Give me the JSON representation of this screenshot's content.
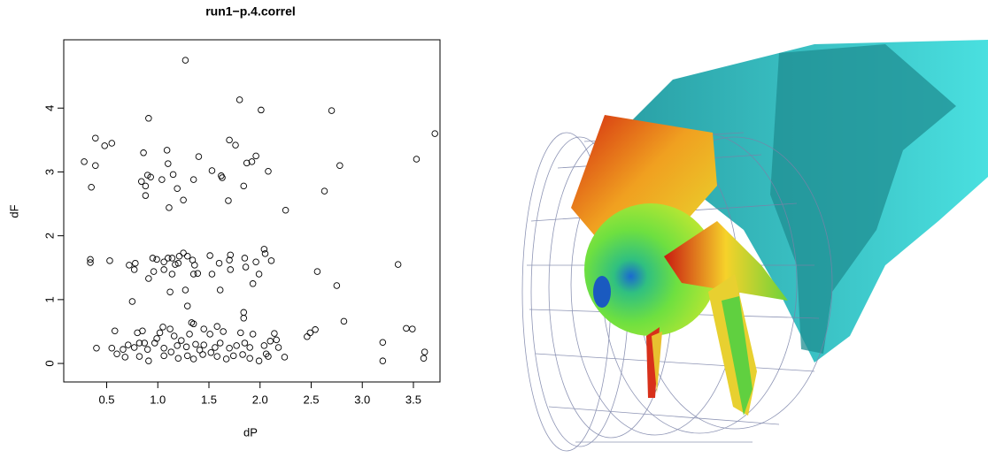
{
  "chart_data": {
    "type": "scatter",
    "title": "run1−p.4.correl",
    "x_label": "dP",
    "y_label": "dF",
    "xlim": [
      0.08,
      3.76
    ],
    "ylim": [
      -0.29,
      5.07
    ],
    "xticks": [
      0.5,
      {
        "value": 1,
        "label": "1.0"
      },
      1.5,
      {
        "value": 2,
        "label": "2.0"
      },
      2.5,
      {
        "value": 3,
        "label": "3.0"
      },
      3.5
    ],
    "yticks": [
      0,
      1,
      2,
      3,
      4
    ],
    "marker_color": "#000000",
    "x": [
      1.27,
      1.8,
      2.01,
      2.7,
      0.91,
      3.71,
      0.39,
      0.55,
      0.48,
      1.7,
      1.76,
      1.09,
      1.4,
      1.96,
      1.92,
      1.87,
      0.28,
      0.39,
      0.86,
      1.1,
      2.78,
      3.53,
      0.9,
      0.93,
      1.53,
      1.62,
      1.63,
      2.08,
      1.15,
      1.04,
      0.84,
      0.88,
      1.35,
      1.84,
      0.35,
      1.19,
      0.88,
      1.25,
      1.69,
      2.63,
      1.11,
      2.25,
      0.34,
      0.34,
      0.53,
      0.72,
      0.78,
      0.77,
      0.95,
      0.99,
      1.06,
      1.1,
      1.14,
      1.17,
      1.21,
      1.25,
      1.29,
      1.34,
      1.36,
      1.39,
      1.35,
      0.96,
      0.91,
      1.06,
      1.14,
      1.2,
      1.51,
      1.53,
      1.6,
      1.71,
      1.7,
      1.71,
      1.85,
      1.86,
      1.96,
      2.04,
      2.05,
      2.11,
      1.99,
      1.93,
      1.61,
      1.27,
      1.12,
      0.75,
      1.29,
      2.56,
      3.35,
      2.75,
      2.82,
      1.84,
      1.84,
      1.33,
      1.35,
      0.58,
      0.8,
      0.85,
      1.02,
      1.05,
      1.12,
      1.16,
      1.31,
      1.45,
      1.51,
      1.58,
      1.64,
      1.81,
      1.93,
      2.14,
      2.16,
      2.49,
      2.54,
      2.46,
      3.43,
      3.49,
      3.2,
      0.4,
      0.55,
      0.66,
      0.71,
      0.77,
      0.82,
      0.87,
      0.9,
      0.97,
      0.99,
      1.06,
      1.19,
      1.23,
      1.28,
      1.37,
      1.41,
      1.45,
      1.56,
      1.61,
      1.7,
      1.77,
      1.85,
      1.9,
      2.04,
      2.1,
      2.18,
      0.6,
      0.68,
      0.82,
      0.91,
      1.06,
      1.13,
      1.2,
      1.29,
      1.35,
      1.44,
      1.52,
      1.58,
      1.67,
      1.74,
      1.83,
      1.9,
      1.99,
      2.06,
      2.08,
      2.24,
      3.2,
      3.61,
      3.6
    ],
    "values": [
      4.75,
      4.13,
      3.97,
      3.96,
      3.84,
      3.6,
      3.53,
      3.45,
      3.41,
      3.5,
      3.42,
      3.34,
      3.24,
      3.25,
      3.16,
      3.14,
      3.16,
      3.1,
      3.3,
      3.13,
      3.1,
      3.2,
      2.95,
      2.92,
      3.02,
      2.94,
      2.91,
      3.01,
      2.96,
      2.88,
      2.85,
      2.78,
      2.88,
      2.78,
      2.76,
      2.74,
      2.63,
      2.56,
      2.55,
      2.7,
      2.44,
      2.4,
      1.63,
      1.58,
      1.61,
      1.54,
      1.57,
      1.47,
      1.65,
      1.63,
      1.59,
      1.65,
      1.65,
      1.55,
      1.68,
      1.73,
      1.68,
      1.62,
      1.54,
      1.41,
      1.4,
      1.44,
      1.33,
      1.47,
      1.4,
      1.57,
      1.69,
      1.4,
      1.57,
      1.7,
      1.62,
      1.47,
      1.65,
      1.51,
      1.59,
      1.79,
      1.72,
      1.61,
      1.4,
      1.25,
      1.15,
      1.15,
      1.12,
      0.97,
      0.9,
      1.44,
      1.55,
      1.22,
      0.66,
      0.8,
      0.71,
      0.64,
      0.62,
      0.51,
      0.48,
      0.51,
      0.48,
      0.57,
      0.54,
      0.43,
      0.46,
      0.54,
      0.46,
      0.58,
      0.5,
      0.48,
      0.46,
      0.47,
      0.37,
      0.48,
      0.53,
      0.42,
      0.55,
      0.54,
      0.33,
      0.24,
      0.24,
      0.22,
      0.29,
      0.25,
      0.32,
      0.32,
      0.22,
      0.32,
      0.39,
      0.24,
      0.28,
      0.36,
      0.26,
      0.3,
      0.21,
      0.29,
      0.25,
      0.32,
      0.24,
      0.28,
      0.32,
      0.25,
      0.28,
      0.35,
      0.25,
      0.15,
      0.1,
      0.11,
      0.04,
      0.12,
      0.18,
      0.08,
      0.12,
      0.07,
      0.14,
      0.17,
      0.11,
      0.07,
      0.12,
      0.14,
      0.08,
      0.04,
      0.15,
      0.11,
      0.1,
      0.04,
      0.18,
      0.08
    ]
  }
}
